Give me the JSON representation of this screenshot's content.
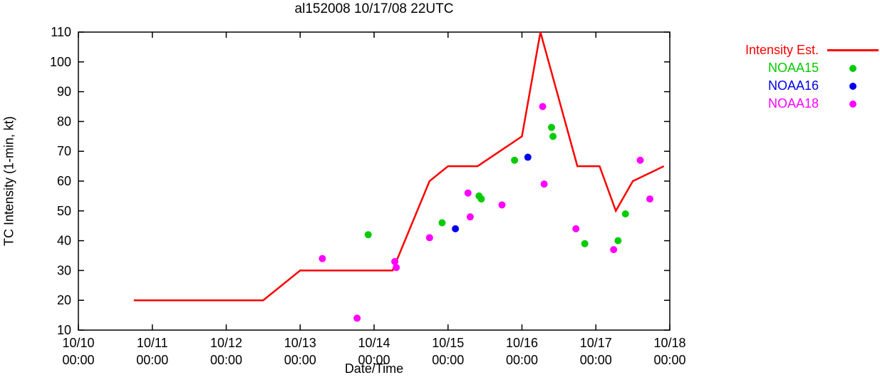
{
  "chart_data": {
    "type": "line",
    "title": "al152008 10/17/08 22UTC",
    "xlabel": "Date/Time",
    "ylabel": "TC Intensity (1-min, kt)",
    "legend_position": "outside-top-right",
    "grid": false,
    "x_axis": {
      "unit": "days since 10/10 00:00",
      "range": [
        0,
        8
      ],
      "tick_labels": [
        [
          "10/10",
          "00:00"
        ],
        [
          "10/11",
          "00:00"
        ],
        [
          "10/12",
          "00:00"
        ],
        [
          "10/13",
          "00:00"
        ],
        [
          "10/14",
          "00:00"
        ],
        [
          "10/15",
          "00:00"
        ],
        [
          "10/16",
          "00:00"
        ],
        [
          "10/17",
          "00:00"
        ],
        [
          "10/18",
          "00:00"
        ]
      ]
    },
    "y_axis": {
      "range": [
        10,
        110
      ],
      "ticks": [
        10,
        20,
        30,
        40,
        50,
        60,
        70,
        80,
        90,
        100,
        110
      ]
    },
    "series": [
      {
        "name": "Intensity Est.",
        "type": "line",
        "color": "#ff0000",
        "points": [
          [
            0.75,
            20
          ],
          [
            2.5,
            20
          ],
          [
            3.0,
            30
          ],
          [
            4.25,
            30
          ],
          [
            4.75,
            60
          ],
          [
            5.0,
            65
          ],
          [
            5.4,
            65
          ],
          [
            6.0,
            75
          ],
          [
            6.25,
            110
          ],
          [
            6.75,
            65
          ],
          [
            7.05,
            65
          ],
          [
            7.27,
            50
          ],
          [
            7.5,
            60
          ],
          [
            7.92,
            65
          ]
        ]
      },
      {
        "name": "NOAA15",
        "type": "scatter",
        "color": "#00cc00",
        "points": [
          [
            3.92,
            42
          ],
          [
            4.92,
            46
          ],
          [
            5.42,
            55
          ],
          [
            5.45,
            54
          ],
          [
            5.9,
            67
          ],
          [
            6.4,
            78
          ],
          [
            6.42,
            75
          ],
          [
            6.85,
            39
          ],
          [
            7.3,
            40
          ],
          [
            7.4,
            49
          ]
        ]
      },
      {
        "name": "NOAA16",
        "type": "scatter",
        "color": "#0000ee",
        "points": [
          [
            5.1,
            44
          ],
          [
            6.08,
            68
          ]
        ]
      },
      {
        "name": "NOAA18",
        "type": "scatter",
        "color": "#ff00ff",
        "points": [
          [
            3.3,
            34
          ],
          [
            3.77,
            14
          ],
          [
            4.28,
            33
          ],
          [
            4.3,
            31
          ],
          [
            4.75,
            41
          ],
          [
            5.27,
            56
          ],
          [
            5.3,
            48
          ],
          [
            5.73,
            52
          ],
          [
            6.28,
            85
          ],
          [
            6.3,
            59
          ],
          [
            6.73,
            44
          ],
          [
            7.24,
            37
          ],
          [
            7.6,
            67
          ],
          [
            7.73,
            54
          ]
        ]
      }
    ]
  }
}
